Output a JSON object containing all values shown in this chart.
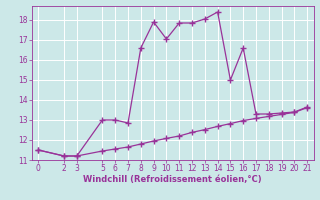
{
  "xlabel": "Windchill (Refroidissement éolien,°C)",
  "bg_color": "#cce8e8",
  "line_color": "#993399",
  "grid_color": "#ffffff",
  "xlim": [
    -0.5,
    21.5
  ],
  "ylim": [
    11,
    18.7
  ],
  "xticks": [
    0,
    2,
    3,
    5,
    6,
    7,
    8,
    9,
    10,
    11,
    12,
    13,
    14,
    15,
    16,
    17,
    18,
    19,
    20,
    21
  ],
  "yticks": [
    11,
    12,
    13,
    14,
    15,
    16,
    17,
    18
  ],
  "line1_x": [
    0,
    2,
    3,
    5,
    6,
    7,
    8,
    9,
    10,
    11,
    12,
    13,
    14,
    15,
    16,
    17,
    18,
    19,
    20,
    21
  ],
  "line1_y": [
    11.5,
    11.2,
    11.2,
    13.0,
    13.0,
    12.85,
    16.6,
    17.9,
    17.05,
    17.85,
    17.85,
    18.05,
    18.4,
    15.0,
    16.6,
    13.3,
    13.3,
    13.35,
    13.4,
    13.65
  ],
  "line2_x": [
    0,
    2,
    3,
    5,
    6,
    7,
    8,
    9,
    10,
    11,
    12,
    13,
    14,
    15,
    16,
    17,
    18,
    19,
    20,
    21
  ],
  "line2_y": [
    11.5,
    11.2,
    11.2,
    11.45,
    11.55,
    11.65,
    11.8,
    11.95,
    12.08,
    12.2,
    12.38,
    12.52,
    12.68,
    12.82,
    12.97,
    13.08,
    13.18,
    13.28,
    13.38,
    13.62
  ],
  "marker": "+",
  "markersize": 4,
  "linewidth": 0.9,
  "tick_fontsize": 5.5,
  "xlabel_fontsize": 6.0
}
